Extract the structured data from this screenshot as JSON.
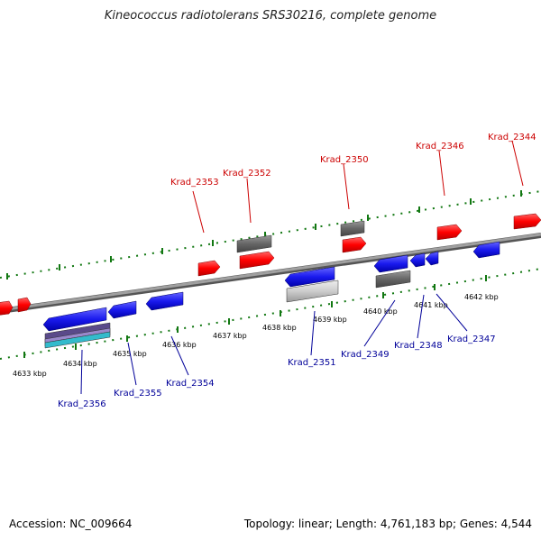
{
  "title": "Kineococcus radiotolerans SRS30216, complete genome",
  "accession": "Accession: NC_009664",
  "stats": "Topology: linear; Length: 4,761,183 bp; Genes: 4,544",
  "colors": {
    "forward_gene": "#ff0000",
    "reverse_gene": "#1a1aee",
    "other_feature": "#666666",
    "backbone": "#888888",
    "tick": "#117711",
    "forward_label": "#cc0000",
    "reverse_label": "#000099"
  },
  "axis": {
    "tick_labels": [
      "4633 kbp",
      "4634 kbp",
      "4635 kbp",
      "4636 kbp",
      "4637 kbp",
      "4638 kbp",
      "4639 kbp",
      "4640 kbp",
      "4641 kbp",
      "4642 kbp"
    ]
  },
  "genes_forward": [
    "Krad_2353",
    "Krad_2352",
    "Krad_2350",
    "Krad_2346",
    "Krad_2344"
  ],
  "genes_reverse": [
    "Krad_2356",
    "Krad_2355",
    "Krad_2354",
    "Krad_2351",
    "Krad_2349",
    "Krad_2348",
    "Krad_2347"
  ]
}
